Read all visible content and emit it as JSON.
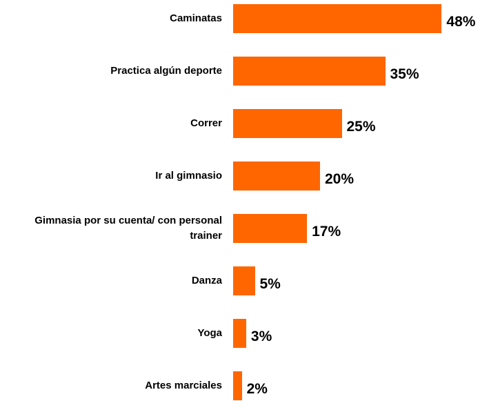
{
  "chart_data": {
    "type": "bar",
    "orientation": "horizontal",
    "categories": [
      "Caminatas",
      "Practica algún deporte",
      "Correr",
      "Ir al gimnasio",
      "Gimnasia por su cuenta/ con personal trainer",
      "Danza",
      "Yoga",
      "Artes marciales"
    ],
    "values": [
      48,
      35,
      25,
      20,
      17,
      5,
      3,
      2
    ],
    "value_labels": [
      "48%",
      "35%",
      "25%",
      "20%",
      "17%",
      "5%",
      "3%",
      "2%"
    ],
    "color": "#ff6600"
  }
}
